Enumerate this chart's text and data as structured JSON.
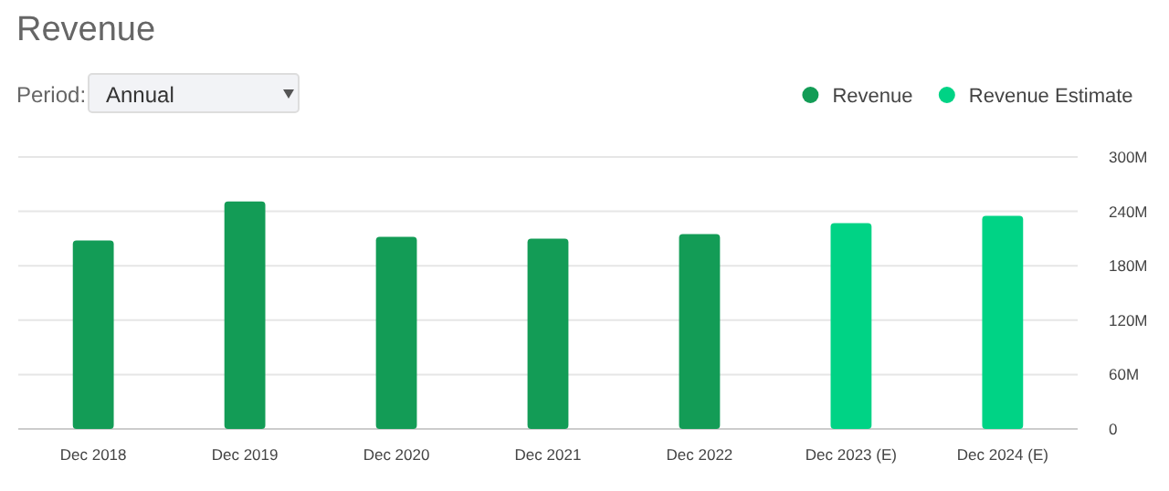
{
  "chart_data": {
    "type": "bar",
    "title": "Revenue",
    "annotations": [
      "Period:",
      "Annual"
    ],
    "categories": [
      "Dec 2018",
      "Dec 2019",
      "Dec 2020",
      "Dec 2021",
      "Dec 2022",
      "Dec 2023 (E)",
      "Dec 2024 (E)"
    ],
    "series": [
      {
        "name": "Revenue",
        "color": "#139c56",
        "values": [
          208,
          251,
          212,
          210,
          215,
          null,
          null
        ]
      },
      {
        "name": "Revenue Estimate",
        "color": "#00d385",
        "values": [
          null,
          null,
          null,
          null,
          null,
          227,
          235
        ]
      }
    ],
    "stacked": true,
    "ylim": [
      0,
      300
    ],
    "yticks": [
      {
        "value": 0,
        "label": "0"
      },
      {
        "value": 60,
        "label": "60M"
      },
      {
        "value": 120,
        "label": "120M"
      },
      {
        "value": 180,
        "label": "180M"
      },
      {
        "value": 240,
        "label": "240M"
      },
      {
        "value": 300,
        "label": "300M"
      }
    ],
    "grid": "y",
    "legend": "top right"
  }
}
